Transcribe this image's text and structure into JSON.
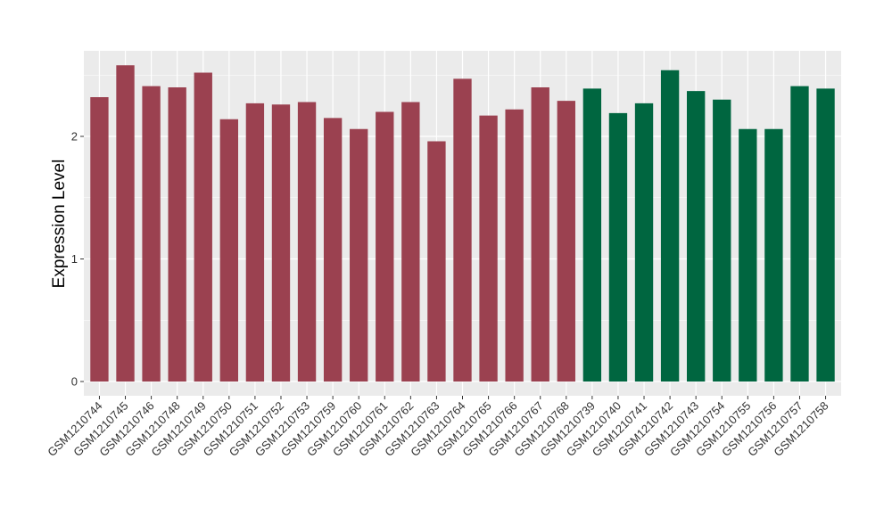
{
  "chart_data": {
    "type": "bar",
    "title": "",
    "xlabel": "",
    "ylabel": "Expression Level",
    "ylim": [
      0,
      2.72
    ],
    "yticks": [
      0,
      1,
      2
    ],
    "grid": true,
    "legend": "none",
    "colors": {
      "group_a": "#9b4150",
      "group_b": "#006640",
      "panel": "#ebebeb",
      "gridline": "#ffffff"
    },
    "categories": [
      "GSM1210744",
      "GSM1210745",
      "GSM1210746",
      "GSM1210748",
      "GSM1210749",
      "GSM1210750",
      "GSM1210751",
      "GSM1210752",
      "GSM1210753",
      "GSM1210759",
      "GSM1210760",
      "GSM1210761",
      "GSM1210762",
      "GSM1210763",
      "GSM1210764",
      "GSM1210765",
      "GSM1210766",
      "GSM1210767",
      "GSM1210768",
      "GSM1210739",
      "GSM1210740",
      "GSM1210741",
      "GSM1210742",
      "GSM1210743",
      "GSM1210754",
      "GSM1210755",
      "GSM1210756",
      "GSM1210757",
      "GSM1210758"
    ],
    "values": [
      2.32,
      2.58,
      2.41,
      2.4,
      2.52,
      2.14,
      2.27,
      2.26,
      2.28,
      2.15,
      2.06,
      2.2,
      2.28,
      1.96,
      2.47,
      2.17,
      2.22,
      2.4,
      2.29,
      2.39,
      2.19,
      2.27,
      2.54,
      2.37,
      2.3,
      2.06,
      2.06,
      2.41,
      2.39
    ],
    "groups": [
      "a",
      "a",
      "a",
      "a",
      "a",
      "a",
      "a",
      "a",
      "a",
      "a",
      "a",
      "a",
      "a",
      "a",
      "a",
      "a",
      "a",
      "a",
      "a",
      "b",
      "b",
      "b",
      "b",
      "b",
      "b",
      "b",
      "b",
      "b",
      "b"
    ]
  }
}
